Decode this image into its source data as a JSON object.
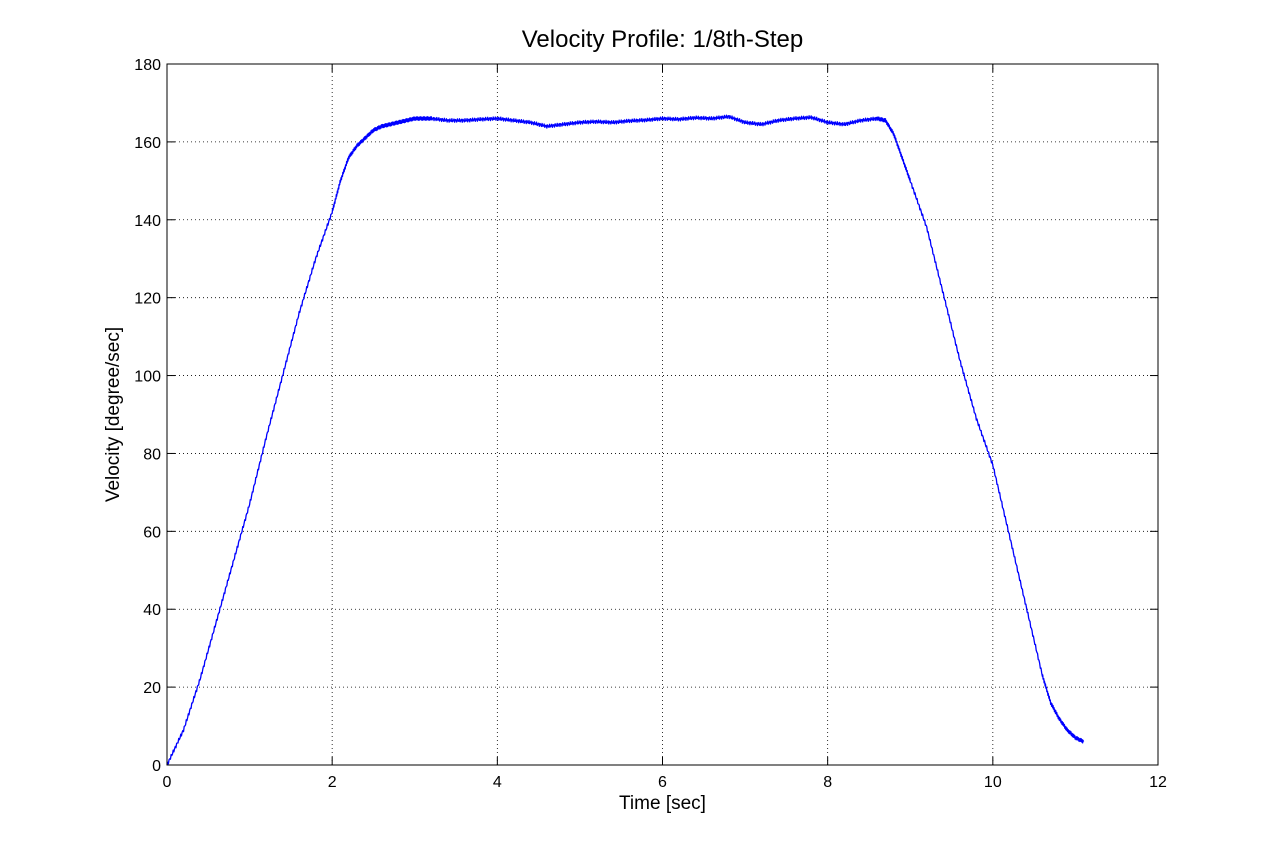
{
  "chart_data": {
    "type": "line",
    "title": "Velocity Profile: 1/8th-Step",
    "xlabel": "Time [sec]",
    "ylabel": "Velocity [degree/sec]",
    "xlim": [
      0,
      12
    ],
    "ylim": [
      0,
      180
    ],
    "xticks": [
      0,
      2,
      4,
      6,
      8,
      10,
      12
    ],
    "yticks": [
      0,
      20,
      40,
      60,
      80,
      100,
      120,
      140,
      160,
      180
    ],
    "grid": true,
    "grid_style": "dotted",
    "series": [
      {
        "color": "#0000ff",
        "x": [
          0.0,
          0.2,
          0.4,
          0.6,
          0.8,
          1.0,
          1.2,
          1.4,
          1.6,
          1.8,
          2.0,
          2.1,
          2.2,
          2.3,
          2.4,
          2.5,
          2.6,
          2.7,
          2.8,
          2.9,
          3.0,
          3.1,
          3.2,
          3.4,
          3.6,
          3.8,
          4.0,
          4.2,
          4.4,
          4.6,
          4.8,
          5.0,
          5.2,
          5.4,
          5.6,
          5.8,
          6.0,
          6.2,
          6.4,
          6.6,
          6.8,
          7.0,
          7.2,
          7.4,
          7.6,
          7.8,
          8.0,
          8.2,
          8.4,
          8.6,
          8.7,
          8.8,
          8.9,
          9.0,
          9.2,
          9.4,
          9.6,
          9.8,
          10.0,
          10.2,
          10.4,
          10.6,
          10.7,
          10.8,
          10.9,
          11.0,
          11.1
        ],
        "y": [
          0,
          9,
          22,
          37,
          52,
          67,
          84,
          100,
          116,
          130,
          142,
          150,
          156,
          159,
          161,
          163,
          164,
          164.5,
          165,
          165.5,
          166,
          166,
          166,
          165.5,
          165.5,
          165.8,
          166,
          165.5,
          165,
          164,
          164.5,
          165,
          165.2,
          165,
          165.4,
          165.6,
          166,
          165.8,
          166.2,
          166,
          166.5,
          165,
          164.5,
          165.5,
          166,
          166.3,
          165,
          164.5,
          165.5,
          166,
          165.5,
          162,
          156,
          150,
          138,
          121,
          104,
          89,
          77,
          59,
          41,
          23,
          16,
          12,
          9,
          7,
          6
        ]
      }
    ]
  }
}
